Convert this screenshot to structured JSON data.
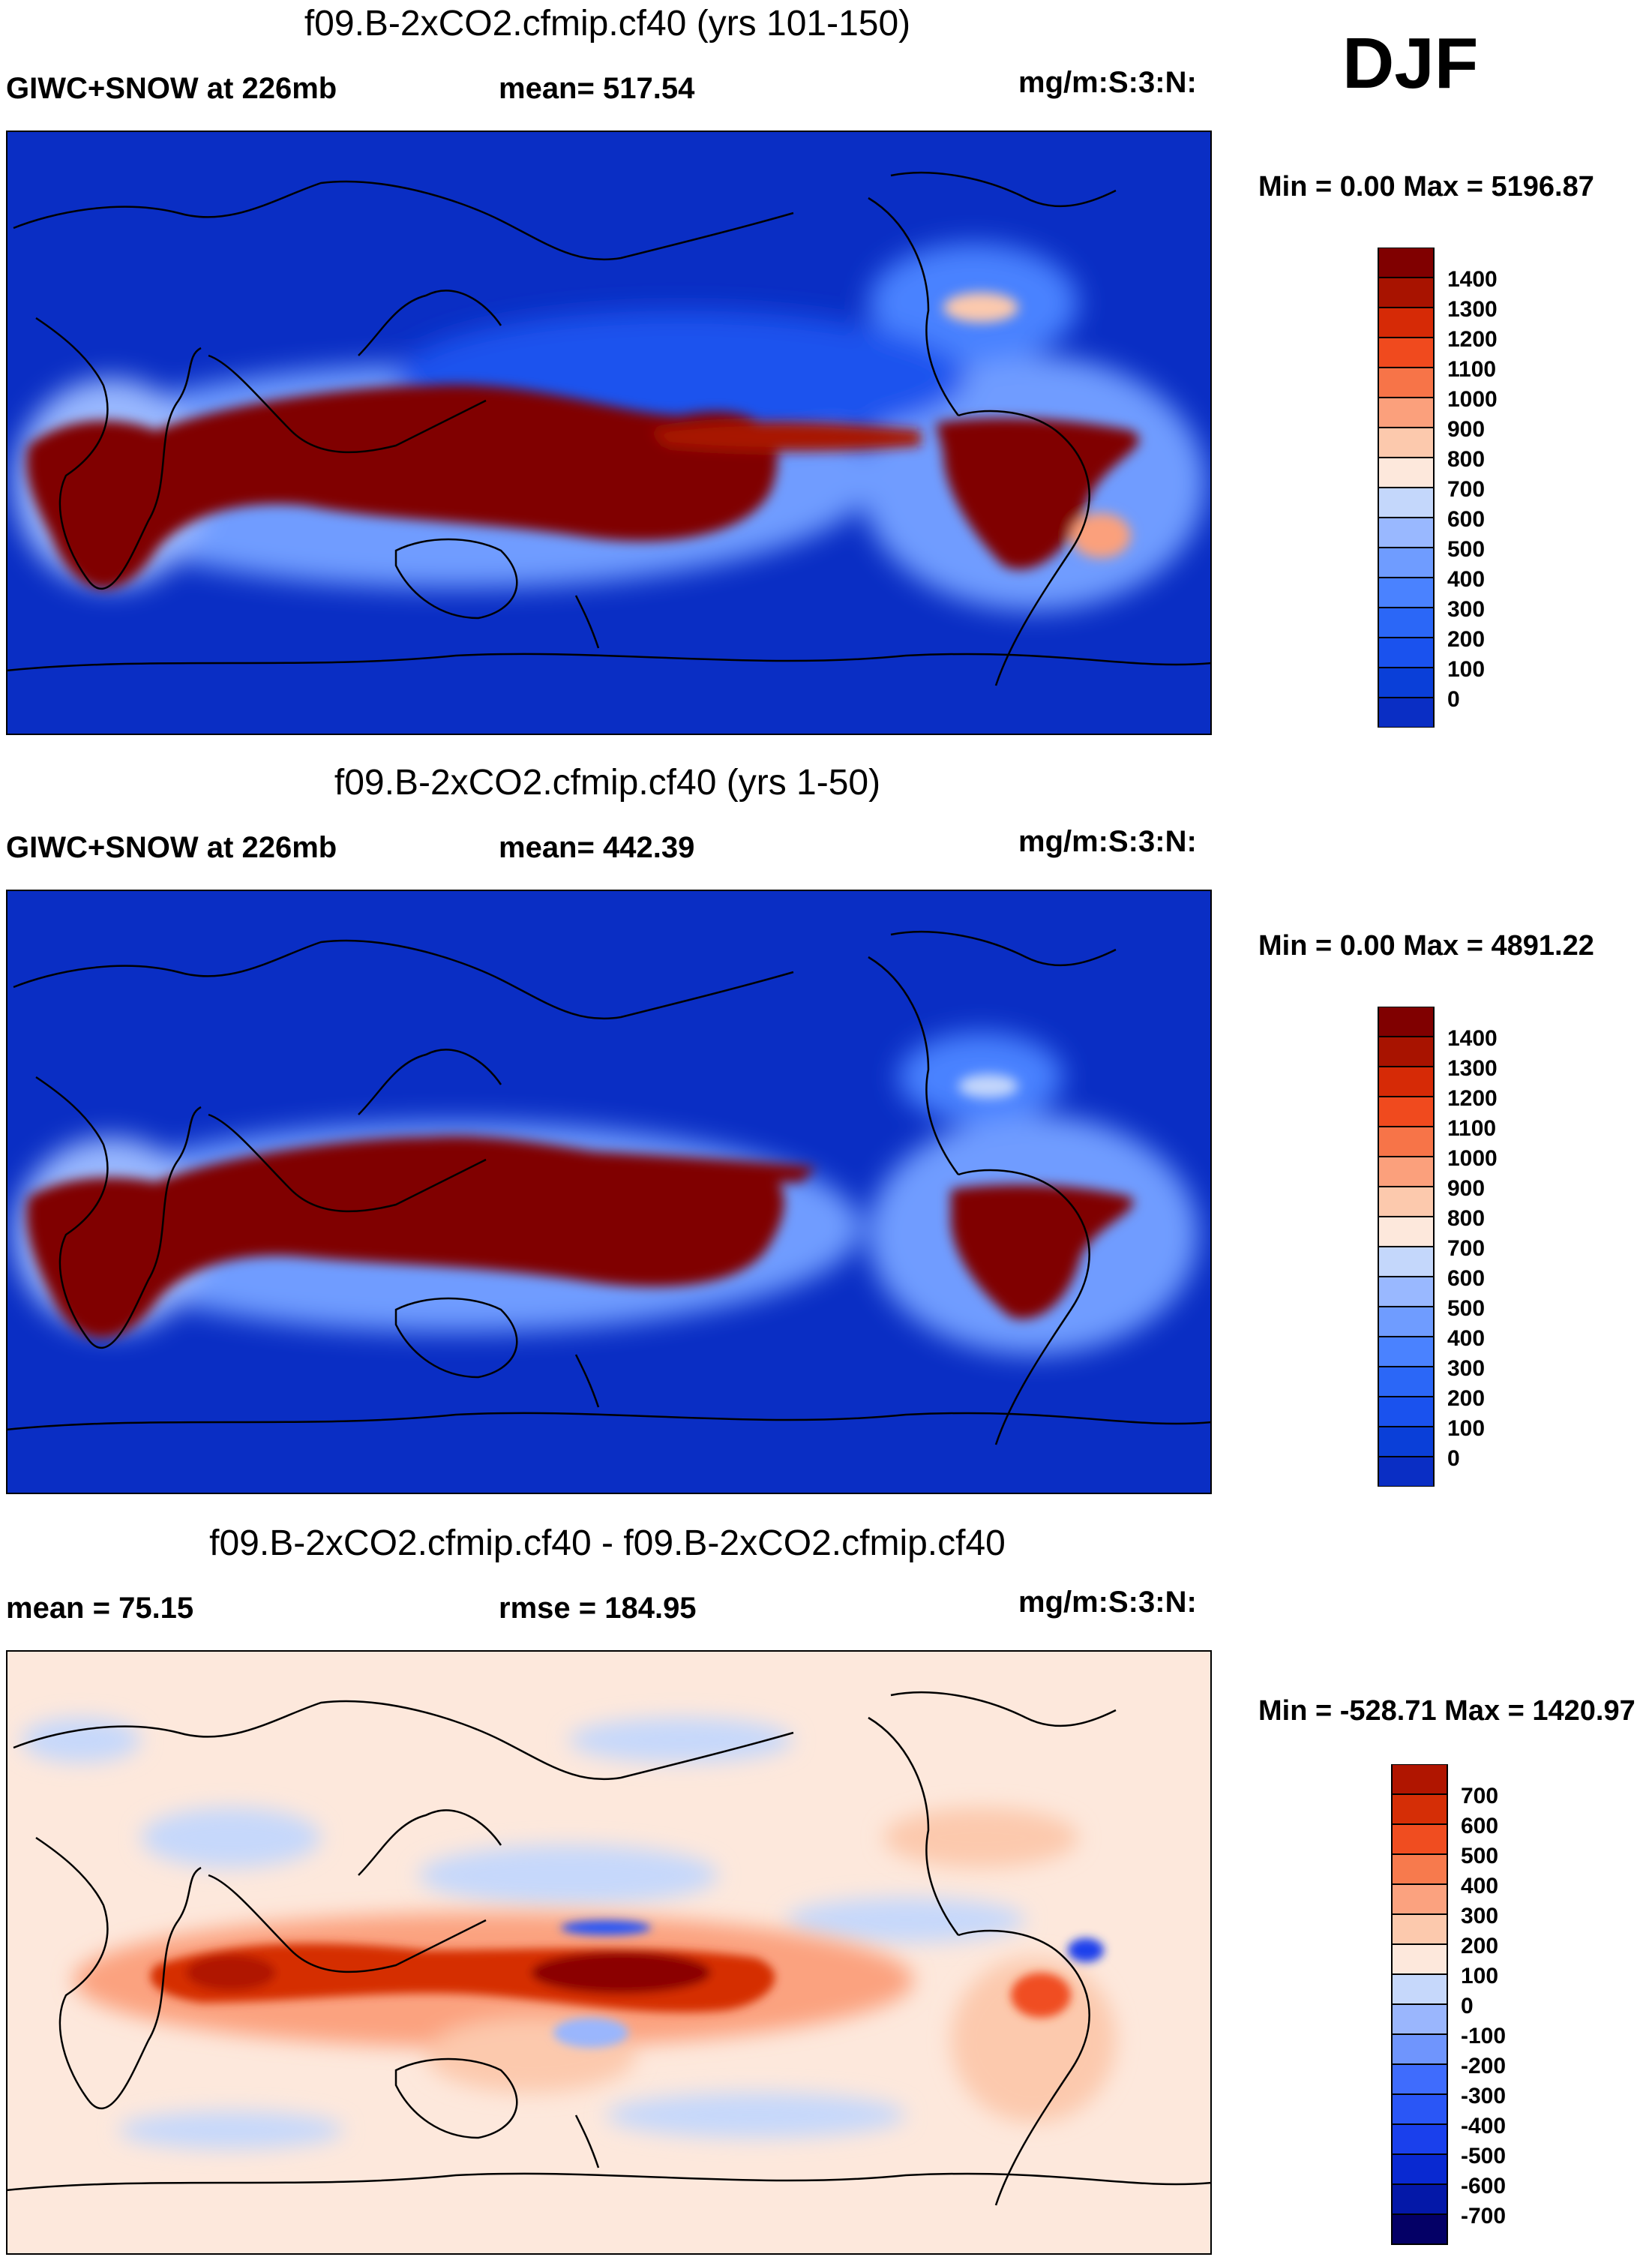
{
  "season": "DJF",
  "colors": {
    "abs_scale": [
      "#1a0f7a",
      "#0a2ec4",
      "#0a3fd8",
      "#1a52ee",
      "#2b67f7",
      "#4a82ff",
      "#6f9cff",
      "#99b8ff",
      "#c4d7fb",
      "#fde8dc",
      "#fcc9ad",
      "#fba07c",
      "#f77448",
      "#f04a1e",
      "#d62a06",
      "#a81300",
      "#800000"
    ],
    "diff_scale": [
      "#040066",
      "#0418a8",
      "#0929d1",
      "#1a40ec",
      "#2a56f6",
      "#3f6cfd",
      "#6f95fd",
      "#9ab6fd",
      "#c6d8fb",
      "#fde8dc",
      "#fcc9ad",
      "#fba27f",
      "#f77a4d",
      "#f04d20",
      "#d52e06",
      "#b01500",
      "#8b0000"
    ],
    "land": "#000000"
  },
  "panels": [
    {
      "title": "f09.B-2xCO2.cfmip.cf40 (yrs 101-150)",
      "left_label": "GIWC+SNOW at 226mb",
      "center_label": "mean= 517.54",
      "units": "mg/m:S:3:N:",
      "min": "0.00",
      "max": "5196.87",
      "minmax_text": "Min =   0.00 Max = 5196.87"
    },
    {
      "title": "f09.B-2xCO2.cfmip.cf40 (yrs 1-50)",
      "left_label": "GIWC+SNOW at 226mb",
      "center_label": "mean= 442.39",
      "units": "mg/m:S:3:N:",
      "min": "0.00",
      "max": "4891.22",
      "minmax_text": "Min =   0.00 Max = 4891.22"
    },
    {
      "title": "f09.B-2xCO2.cfmip.cf40 - f09.B-2xCO2.cfmip.cf40",
      "left_label": "mean =  75.15",
      "center_label": "rmse = 184.95",
      "units": "mg/m:S:3:N:",
      "min": "-528.71",
      "max": "1420.97",
      "minmax_text": "Min = -528.71 Max = 1420.97"
    }
  ],
  "chart_data": [
    {
      "type": "heatmap",
      "title": "f09.B-2xCO2.cfmip.cf40 (yrs 101-150)",
      "variable": "GIWC+SNOW at 226mb",
      "mean": 517.54,
      "units": "mg/m:S:3:N:",
      "min": 0.0,
      "max": 5196.87,
      "colorbar_levels": [
        "1400",
        "1300",
        "1200",
        "1100",
        "1000",
        "900",
        "800",
        "700",
        "600",
        "500",
        "400",
        "300",
        "200",
        "100",
        "0"
      ],
      "features": [
        "ITCZ Indian Ocean/West Pacific maximum",
        "South America maximum",
        "Southern Africa maximum",
        "North Atlantic secondary maximum"
      ]
    },
    {
      "type": "heatmap",
      "title": "f09.B-2xCO2.cfmip.cf40 (yrs 1-50)",
      "variable": "GIWC+SNOW at 226mb",
      "mean": 442.39,
      "units": "mg/m:S:3:N:",
      "min": 0.0,
      "max": 4891.22,
      "colorbar_levels": [
        "1400",
        "1300",
        "1200",
        "1100",
        "1000",
        "900",
        "800",
        "700",
        "600",
        "500",
        "400",
        "300",
        "200",
        "100",
        "0"
      ],
      "features": [
        "ITCZ Indian Ocean/West Pacific maximum",
        "South America maximum",
        "Southern Africa maximum"
      ]
    },
    {
      "type": "heatmap",
      "title": "f09.B-2xCO2.cfmip.cf40 - f09.B-2xCO2.cfmip.cf40",
      "mean": 75.15,
      "rmse": 184.95,
      "units": "mg/m:S:3:N:",
      "min": -528.71,
      "max": 1420.97,
      "colorbar_levels": [
        "700",
        "600",
        "500",
        "400",
        "300",
        "200",
        "100",
        "0",
        "-100",
        "-200",
        "-300",
        "-400",
        "-500",
        "-600",
        "-700"
      ],
      "features": [
        "positive anomaly band along tropical Indian/Pacific",
        "positive anomaly over South America",
        "weak negative patches in subtropics"
      ]
    }
  ]
}
